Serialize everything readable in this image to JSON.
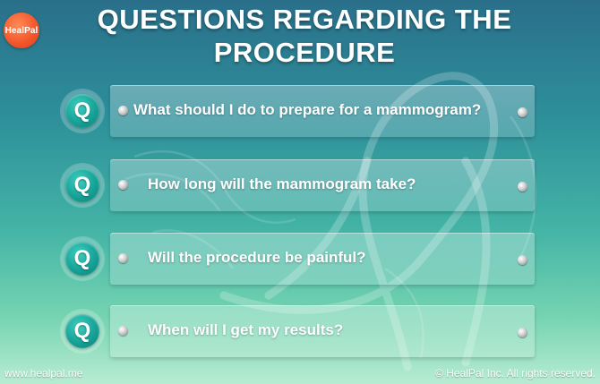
{
  "brand": {
    "logo_text": "HealPal"
  },
  "title": {
    "line1": "QUESTIONS REGARDING THE",
    "line2": "PROCEDURE"
  },
  "badge_letter": "Q",
  "questions": [
    {
      "text": "What should I do to prepare for a mammogram?"
    },
    {
      "text": "How long will the mammogram take?"
    },
    {
      "text": "Will the procedure be painful?"
    },
    {
      "text": "When will I get my results?"
    }
  ],
  "footer": {
    "website": "www.healpal.me",
    "copyright": "© HealPal Inc. All rights reserved."
  },
  "colors": {
    "background_top": "#2a6f8a",
    "background_bottom": "#b8ecd2",
    "logo": "#f2542a",
    "badge": "#16a297",
    "text": "#ffffff"
  },
  "icons": {
    "decoration": "pink-ribbon-outline"
  }
}
